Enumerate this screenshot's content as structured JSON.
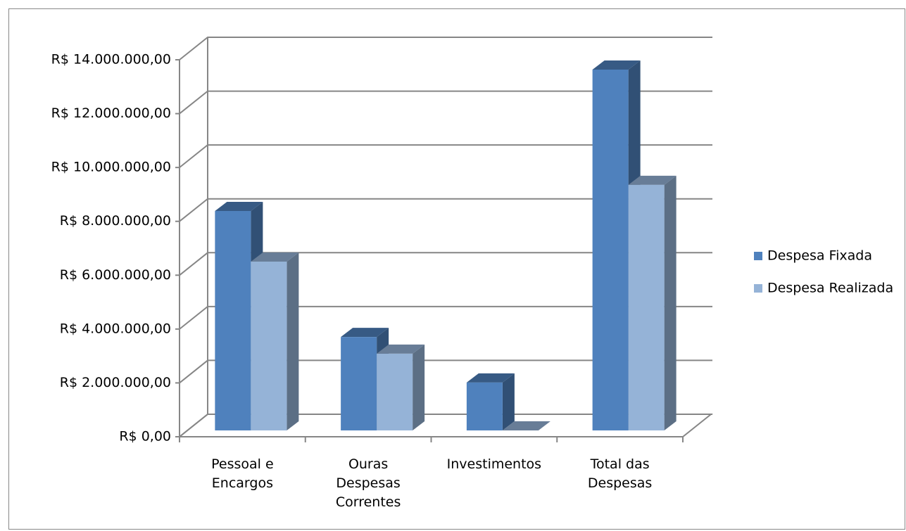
{
  "chart_data": {
    "type": "bar3d",
    "categories": [
      "Pessoal e Encargos",
      "Ouras Despesas Correntes",
      "Investimentos",
      "Total das Despesas"
    ],
    "series": [
      {
        "name": "Despesa Fixada",
        "color": "#4f81bd",
        "values": [
          8150000,
          3470000,
          1780000,
          13400000
        ]
      },
      {
        "name": "Despesa Realizada",
        "color": "#95b3d7",
        "values": [
          6270000,
          2850000,
          0,
          9120000
        ]
      }
    ],
    "ylim": [
      0,
      14000000
    ],
    "yticks": [
      {
        "value": 0,
        "label": "R$ 0,00"
      },
      {
        "value": 2000000,
        "label": "R$ 2.000.000,00"
      },
      {
        "value": 4000000,
        "label": "R$ 4.000.000,00"
      },
      {
        "value": 6000000,
        "label": "R$ 6.000.000,00"
      },
      {
        "value": 8000000,
        "label": "R$ 8.000.000,00"
      },
      {
        "value": 10000000,
        "label": "R$ 10.000.000,00"
      },
      {
        "value": 12000000,
        "label": "R$ 12.000.000,00"
      },
      {
        "value": 14000000,
        "label": "R$ 14.000.000,00"
      }
    ],
    "grid": true,
    "legend": "right"
  }
}
